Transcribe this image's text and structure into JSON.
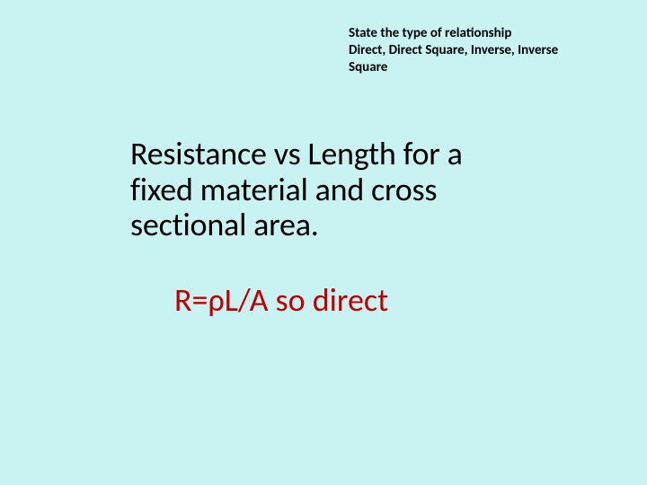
{
  "colors": {
    "background": "#c9f2f2",
    "heading_text": "#000000",
    "body_text": "#000000",
    "answer_text": "#c00000"
  },
  "typography": {
    "header_fontsize": 15,
    "header_weight": 700,
    "body_fontsize": 36,
    "body_weight": 400,
    "answer_fontsize": 36,
    "answer_weight": 400,
    "font_family": "Calibri"
  },
  "header": {
    "line1": "State the type of relationship",
    "line2": "Direct, Direct Square, Inverse, Inverse",
    "line3": "Square"
  },
  "question": {
    "line1": "Resistance vs Length for a",
    "line2": "fixed material and cross",
    "line3": "sectional area."
  },
  "answer": {
    "text": "R=ρL/A so direct"
  }
}
